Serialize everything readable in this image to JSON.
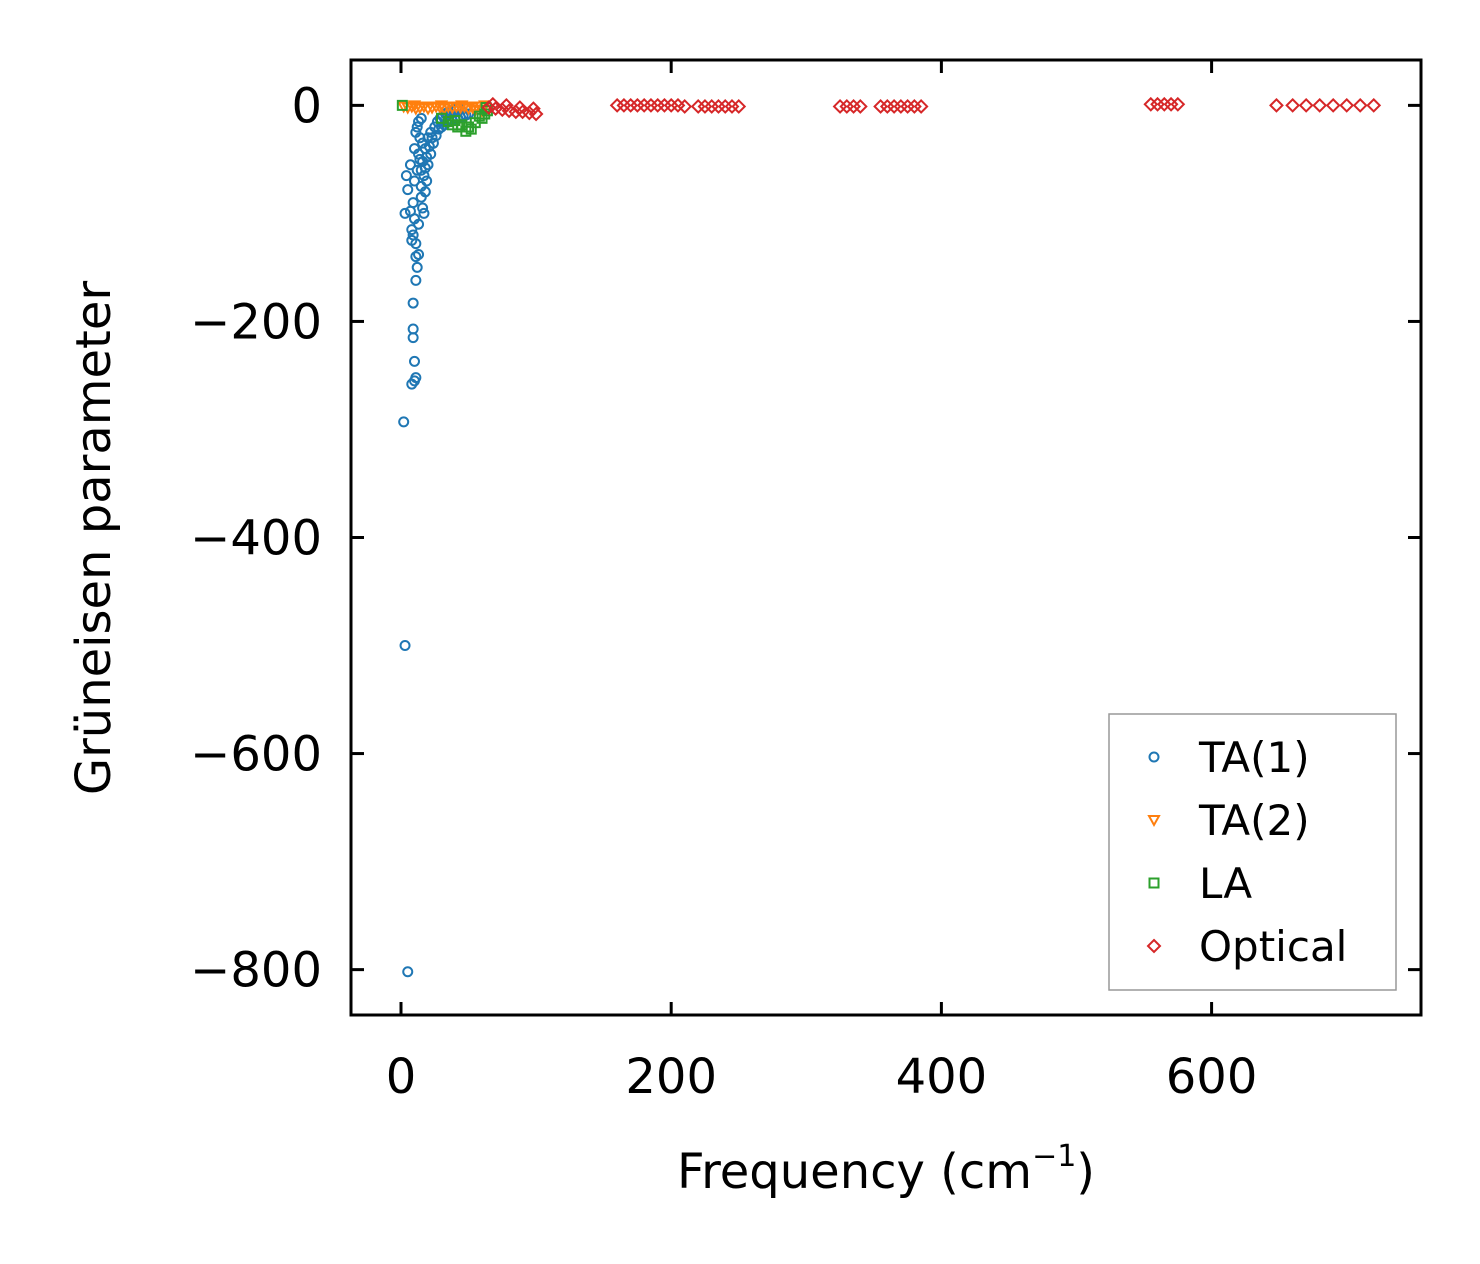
{
  "chart_data": {
    "type": "scatter",
    "xlabel": "Frequency (cm",
    "xlabel_sup": "−1",
    "xlabel_end": ")",
    "ylabel": "Grüneisen parameter",
    "xlim": [
      -37,
      755
    ],
    "ylim": [
      -842,
      42
    ],
    "x_ticks": [
      0,
      200,
      400,
      600
    ],
    "x_tick_labels": [
      "0",
      "200",
      "400",
      "600"
    ],
    "y_ticks": [
      0,
      -200,
      -400,
      -600,
      -800
    ],
    "y_tick_labels": [
      "0",
      "−200",
      "−400",
      "−600",
      "−800"
    ],
    "legend_position": "lower-right",
    "series": [
      {
        "name": "TA(1)",
        "marker": "circle",
        "color": "#1f77b4",
        "points": [
          [
            2,
            -293
          ],
          [
            3,
            -500
          ],
          [
            5,
            -802
          ],
          [
            3,
            -100
          ],
          [
            5,
            -78
          ],
          [
            7,
            -55
          ],
          [
            4,
            -65
          ],
          [
            8,
            -115
          ],
          [
            9,
            -120
          ],
          [
            8,
            -125
          ],
          [
            10,
            -105
          ],
          [
            9,
            -90
          ],
          [
            7,
            -98
          ],
          [
            8,
            -258
          ],
          [
            10,
            -255
          ],
          [
            11,
            -252
          ],
          [
            10,
            -237
          ],
          [
            9,
            -215
          ],
          [
            9,
            -207
          ],
          [
            9,
            -183
          ],
          [
            11,
            -162
          ],
          [
            12,
            -150
          ],
          [
            11,
            -140
          ],
          [
            13,
            -138
          ],
          [
            11,
            -128
          ],
          [
            13,
            -110
          ],
          [
            10,
            -70
          ],
          [
            12,
            -60
          ],
          [
            10,
            -40
          ],
          [
            14,
            -50
          ],
          [
            11,
            -25
          ],
          [
            15,
            -85
          ],
          [
            16,
            -95
          ],
          [
            17,
            -100
          ],
          [
            18,
            -80
          ],
          [
            19,
            -70
          ],
          [
            15,
            -60
          ],
          [
            20,
            -55
          ],
          [
            22,
            -45
          ],
          [
            24,
            -35
          ],
          [
            26,
            -28
          ],
          [
            28,
            -22
          ],
          [
            30,
            -20
          ],
          [
            32,
            -18
          ],
          [
            34,
            -16
          ],
          [
            36,
            -15
          ],
          [
            38,
            -14
          ],
          [
            40,
            -13
          ],
          [
            42,
            -12
          ],
          [
            44,
            -11
          ],
          [
            46,
            -10
          ],
          [
            48,
            -9
          ],
          [
            50,
            -8
          ],
          [
            14,
            -30
          ],
          [
            16,
            -35
          ],
          [
            18,
            -40
          ],
          [
            20,
            -30
          ],
          [
            22,
            -25
          ],
          [
            25,
            -20
          ],
          [
            27,
            -15
          ],
          [
            29,
            -12
          ],
          [
            31,
            -10
          ],
          [
            33,
            -8
          ],
          [
            35,
            -6
          ],
          [
            37,
            -5
          ],
          [
            39,
            -4
          ],
          [
            41,
            -3
          ],
          [
            43,
            -2
          ],
          [
            17,
            -65
          ],
          [
            19,
            -48
          ],
          [
            21,
            -38
          ],
          [
            23,
            -30
          ],
          [
            13,
            -45
          ],
          [
            15,
            -75
          ],
          [
            16,
            -52
          ],
          [
            18,
            -58
          ],
          [
            12,
            -20
          ],
          [
            13,
            -15
          ],
          [
            15,
            -12
          ]
        ]
      },
      {
        "name": "TA(2)",
        "marker": "triangle-down",
        "color": "#ff7f0e",
        "points": [
          [
            2,
            -1
          ],
          [
            5,
            -2
          ],
          [
            8,
            -1
          ],
          [
            11,
            -3
          ],
          [
            14,
            -2
          ],
          [
            17,
            -1
          ],
          [
            20,
            -3
          ],
          [
            23,
            -2
          ],
          [
            26,
            -1
          ],
          [
            29,
            -2
          ],
          [
            32,
            -3
          ],
          [
            35,
            -1
          ],
          [
            38,
            -2
          ],
          [
            41,
            -1
          ],
          [
            44,
            -2
          ],
          [
            47,
            -1
          ],
          [
            50,
            -3
          ],
          [
            53,
            -2
          ],
          [
            56,
            -1
          ],
          [
            59,
            -1
          ],
          [
            62,
            0
          ],
          [
            10,
            0
          ],
          [
            30,
            0
          ],
          [
            45,
            0
          ],
          [
            55,
            -4
          ],
          [
            60,
            -5
          ]
        ]
      },
      {
        "name": "LA",
        "marker": "square",
        "color": "#2ca02c",
        "points": [
          [
            1,
            0
          ],
          [
            30,
            -12
          ],
          [
            35,
            -15
          ],
          [
            40,
            -14
          ],
          [
            45,
            -18
          ],
          [
            50,
            -20
          ],
          [
            55,
            -16
          ],
          [
            60,
            -12
          ],
          [
            62,
            -8
          ],
          [
            64,
            -5
          ],
          [
            58,
            -10
          ],
          [
            52,
            -22
          ],
          [
            48,
            -24
          ],
          [
            42,
            -20
          ],
          [
            38,
            -18
          ],
          [
            63,
            -2
          ]
        ]
      },
      {
        "name": "Optical",
        "marker": "diamond",
        "color": "#d62728",
        "points": [
          [
            65,
            -2
          ],
          [
            70,
            -3
          ],
          [
            75,
            -4
          ],
          [
            80,
            -5
          ],
          [
            85,
            -6
          ],
          [
            90,
            -6
          ],
          [
            95,
            -7
          ],
          [
            100,
            -8
          ],
          [
            68,
            1
          ],
          [
            78,
            0
          ],
          [
            88,
            -2
          ],
          [
            98,
            -3
          ],
          [
            160,
            0
          ],
          [
            165,
            0
          ],
          [
            170,
            0
          ],
          [
            175,
            0
          ],
          [
            180,
            0
          ],
          [
            185,
            0
          ],
          [
            190,
            0
          ],
          [
            195,
            0
          ],
          [
            200,
            0
          ],
          [
            205,
            0
          ],
          [
            210,
            -1
          ],
          [
            220,
            -1
          ],
          [
            225,
            -1
          ],
          [
            230,
            -1
          ],
          [
            235,
            -1
          ],
          [
            240,
            -1
          ],
          [
            245,
            -1
          ],
          [
            250,
            -1
          ],
          [
            325,
            -1
          ],
          [
            330,
            -1
          ],
          [
            335,
            -1
          ],
          [
            340,
            -1
          ],
          [
            355,
            -1
          ],
          [
            360,
            -1
          ],
          [
            365,
            -1
          ],
          [
            370,
            -1
          ],
          [
            375,
            -1
          ],
          [
            380,
            -1
          ],
          [
            385,
            -1
          ],
          [
            555,
            1
          ],
          [
            560,
            1
          ],
          [
            565,
            1
          ],
          [
            570,
            1
          ],
          [
            575,
            1
          ],
          [
            648,
            0
          ],
          [
            660,
            0
          ],
          [
            670,
            0
          ],
          [
            680,
            0
          ],
          [
            690,
            0
          ],
          [
            700,
            0
          ],
          [
            710,
            0
          ],
          [
            720,
            0
          ]
        ]
      }
    ]
  }
}
